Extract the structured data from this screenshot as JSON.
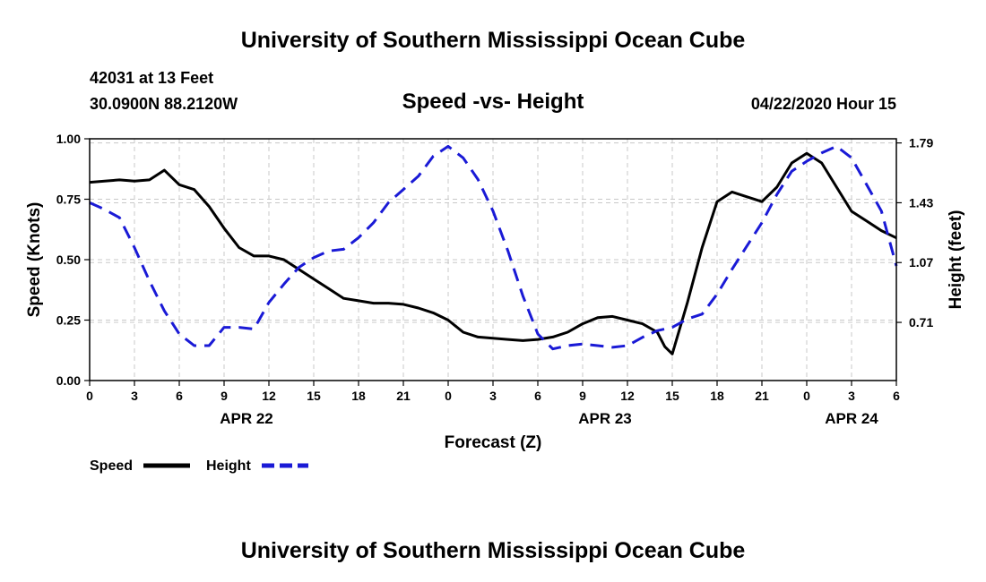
{
  "page": {
    "top_title": "University of Southern Mississippi Ocean Cube",
    "bottom_title": "University of Southern Mississippi Ocean Cube",
    "station": "42031 at 13 Feet",
    "location": "30.0900N 88.2120W",
    "run_time": "04/22/2020 Hour 15"
  },
  "colors": {
    "speed": "#000000",
    "height": "#1a1ad6",
    "grid": "#c8c8c8"
  },
  "chart_data": {
    "type": "line",
    "title": "Speed -vs- Height",
    "xlabel": "Forecast (Z)",
    "ylabel": "Speed (Knots)",
    "y2label": "Height (feet)",
    "x_range": [
      0,
      54
    ],
    "ylim": [
      0,
      1.0
    ],
    "y2lim": [
      0.36,
      1.815
    ],
    "x_ticks": [
      {
        "x": 0,
        "label": "0"
      },
      {
        "x": 3,
        "label": "3"
      },
      {
        "x": 6,
        "label": "6"
      },
      {
        "x": 9,
        "label": "9"
      },
      {
        "x": 12,
        "label": "12"
      },
      {
        "x": 15,
        "label": "15"
      },
      {
        "x": 18,
        "label": "18"
      },
      {
        "x": 21,
        "label": "21"
      },
      {
        "x": 24,
        "label": "0"
      },
      {
        "x": 27,
        "label": "3"
      },
      {
        "x": 30,
        "label": "6"
      },
      {
        "x": 33,
        "label": "9"
      },
      {
        "x": 36,
        "label": "12"
      },
      {
        "x": 39,
        "label": "15"
      },
      {
        "x": 42,
        "label": "18"
      },
      {
        "x": 45,
        "label": "21"
      },
      {
        "x": 48,
        "label": "0"
      },
      {
        "x": 51,
        "label": "3"
      },
      {
        "x": 54,
        "label": "6"
      }
    ],
    "y_ticks": [
      {
        "v": 0.0,
        "label": "0.00"
      },
      {
        "v": 0.25,
        "label": "0.25"
      },
      {
        "v": 0.5,
        "label": "0.50"
      },
      {
        "v": 0.75,
        "label": "0.75"
      },
      {
        "v": 1.0,
        "label": "1.00"
      }
    ],
    "y2_ticks": [
      {
        "v": 0.71,
        "label": "0.71"
      },
      {
        "v": 1.07,
        "label": "1.07"
      },
      {
        "v": 1.43,
        "label": "1.43"
      },
      {
        "v": 1.79,
        "label": "1.79"
      }
    ],
    "date_labels": [
      {
        "x": 10.5,
        "label": "APR 22"
      },
      {
        "x": 34.5,
        "label": "APR 23"
      },
      {
        "x": 51,
        "label": "APR 24"
      }
    ],
    "series": [
      {
        "name": "Speed",
        "axis": "left",
        "style": "solid",
        "x": [
          0,
          1,
          2,
          3,
          4,
          5,
          6,
          7,
          8,
          9,
          10,
          11,
          12,
          13,
          14,
          15,
          16,
          17,
          18,
          19,
          20,
          21,
          22,
          23,
          24,
          25,
          26,
          27,
          28,
          29,
          30,
          31,
          32,
          33,
          34,
          35,
          36,
          37,
          38,
          38.5,
          39,
          40,
          41,
          42,
          43,
          44,
          45,
          46,
          47,
          48,
          49,
          50,
          51,
          52,
          53,
          54
        ],
        "values": [
          0.82,
          0.825,
          0.83,
          0.825,
          0.83,
          0.87,
          0.81,
          0.79,
          0.72,
          0.63,
          0.55,
          0.515,
          0.515,
          0.5,
          0.46,
          0.42,
          0.38,
          0.34,
          0.33,
          0.32,
          0.32,
          0.315,
          0.3,
          0.28,
          0.25,
          0.2,
          0.18,
          0.175,
          0.17,
          0.165,
          0.17,
          0.18,
          0.2,
          0.235,
          0.26,
          0.265,
          0.25,
          0.235,
          0.2,
          0.14,
          0.11,
          0.32,
          0.55,
          0.74,
          0.78,
          0.76,
          0.74,
          0.8,
          0.9,
          0.94,
          0.9,
          0.8,
          0.7,
          0.66,
          0.62,
          0.59
        ]
      },
      {
        "name": "Height",
        "axis": "right",
        "style": "dashed",
        "x": [
          0,
          1,
          2,
          3,
          4,
          5,
          6,
          7,
          8,
          9,
          10,
          11,
          12,
          13,
          14,
          15,
          16,
          17,
          18,
          19,
          20,
          21,
          22,
          23,
          24,
          25,
          26,
          27,
          28,
          29,
          30,
          31,
          32,
          33,
          34,
          35,
          36,
          37,
          38,
          39,
          40,
          41,
          42,
          43,
          44,
          45,
          46,
          47,
          48,
          49,
          50,
          51,
          52,
          53,
          54
        ],
        "values": [
          1.43,
          1.39,
          1.34,
          1.16,
          0.96,
          0.78,
          0.64,
          0.57,
          0.57,
          0.68,
          0.68,
          0.67,
          0.83,
          0.94,
          1.04,
          1.1,
          1.14,
          1.15,
          1.22,
          1.31,
          1.43,
          1.51,
          1.59,
          1.71,
          1.77,
          1.7,
          1.57,
          1.38,
          1.14,
          0.87,
          0.64,
          0.55,
          0.57,
          0.58,
          0.57,
          0.56,
          0.57,
          0.62,
          0.66,
          0.68,
          0.73,
          0.76,
          0.88,
          1.03,
          1.17,
          1.31,
          1.48,
          1.62,
          1.68,
          1.73,
          1.77,
          1.7,
          1.54,
          1.38,
          1.05
        ]
      }
    ],
    "legend": [
      {
        "label": "Speed",
        "style": "solid"
      },
      {
        "label": "Height",
        "style": "dashed"
      }
    ]
  }
}
